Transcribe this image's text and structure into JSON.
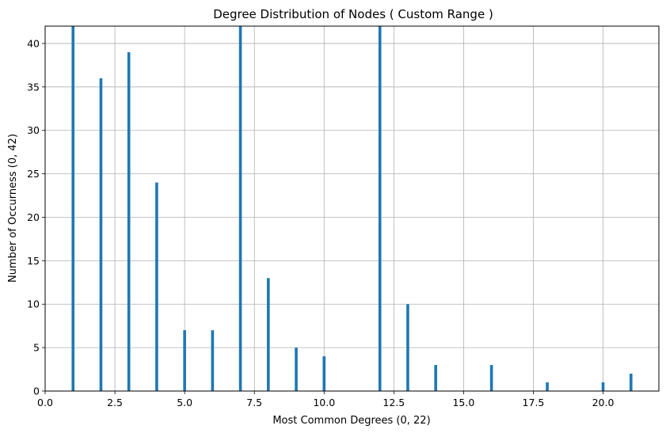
{
  "chart_data": {
    "type": "bar",
    "title": "Degree Distribution of Nodes ( Custom Range )",
    "xlabel": "Most Common Degrees (0, 22)",
    "ylabel": "Number of Occurness (0, 42)",
    "xlim": [
      0,
      22
    ],
    "ylim": [
      0,
      42
    ],
    "x_ticks": [
      "0.0",
      "2.5",
      "5.0",
      "7.5",
      "10.0",
      "12.5",
      "15.0",
      "17.5",
      "20.0"
    ],
    "y_ticks": [
      "0",
      "5",
      "10",
      "15",
      "20",
      "25",
      "30",
      "35",
      "40"
    ],
    "grid": true,
    "bar_color": "#1f77b4",
    "x": [
      1,
      2,
      3,
      4,
      5,
      6,
      7,
      8,
      9,
      10,
      12,
      13,
      14,
      16,
      18,
      20,
      21
    ],
    "values": [
      42,
      36,
      39,
      24,
      7,
      7,
      42,
      13,
      5,
      4,
      42,
      10,
      3,
      3,
      1,
      1,
      2
    ]
  }
}
